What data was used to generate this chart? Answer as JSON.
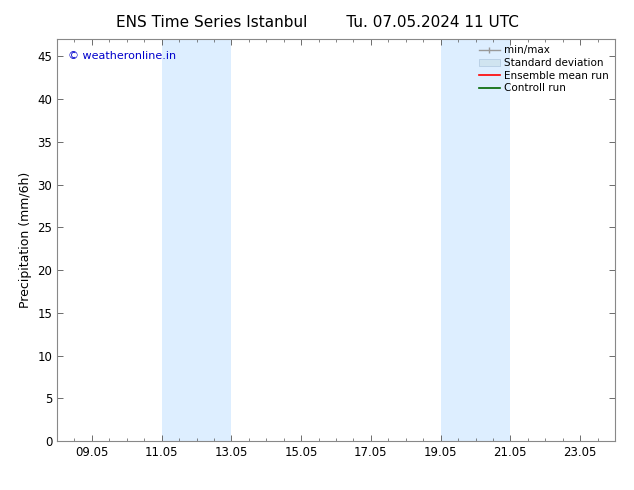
{
  "title_left": "ENS Time Series Istanbul",
  "title_right": "Tu. 07.05.2024 11 UTC",
  "ylabel": "Precipitation (mm/6h)",
  "x_ticks": [
    "09.05",
    "11.05",
    "13.05",
    "15.05",
    "17.05",
    "19.05",
    "21.05",
    "23.05"
  ],
  "x_tick_positions": [
    1.0,
    3.0,
    5.0,
    7.0,
    9.0,
    11.0,
    13.0,
    15.0
  ],
  "xlim": [
    0,
    16
  ],
  "ylim": [
    0,
    47
  ],
  "y_ticks": [
    0,
    5,
    10,
    15,
    20,
    25,
    30,
    35,
    40,
    45
  ],
  "shaded_regions": [
    {
      "x_start": 3.0,
      "x_end": 5.0
    },
    {
      "x_start": 11.0,
      "x_end": 13.0
    }
  ],
  "shaded_color": "#ddeeff",
  "background_color": "#ffffff",
  "plot_bg_color": "#ffffff",
  "watermark_text": "© weatheronline.in",
  "watermark_color": "#0000cc",
  "legend_labels": [
    "min/max",
    "Standard deviation",
    "Ensemble mean run",
    "Controll run"
  ],
  "legend_colors": [
    "#aaaaaa",
    "#d0e4f0",
    "#ff0000",
    "#006600"
  ],
  "title_fontsize": 11,
  "axis_label_fontsize": 9,
  "tick_fontsize": 8.5,
  "legend_fontsize": 7.5,
  "watermark_fontsize": 8
}
